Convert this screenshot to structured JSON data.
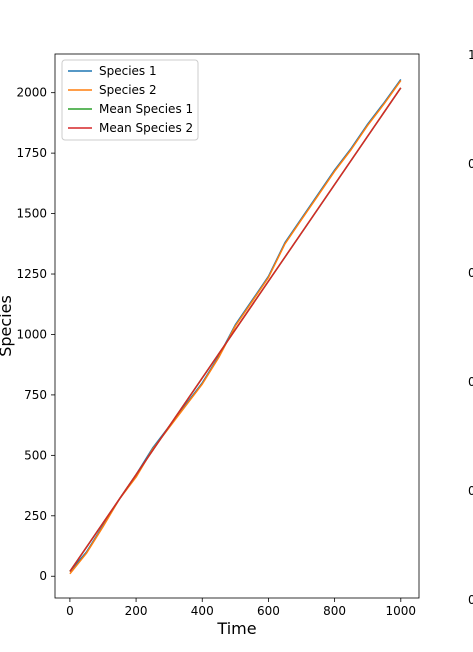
{
  "chart_data": {
    "type": "line",
    "xlabel": "Time",
    "ylabel": "Species",
    "xlim": [
      -45,
      1055
    ],
    "ylim": [
      -90,
      2160
    ],
    "xticks": [
      0,
      200,
      400,
      600,
      800,
      1000
    ],
    "yticks": [
      0,
      250,
      500,
      750,
      1000,
      1250,
      1500,
      1750,
      2000
    ],
    "legend_position": "upper-left",
    "grid": false,
    "series": [
      {
        "name": "Species 1",
        "color": "#1f77b4",
        "x": [
          0,
          50,
          100,
          150,
          200,
          250,
          300,
          350,
          400,
          450,
          500,
          550,
          600,
          650,
          700,
          750,
          800,
          850,
          900,
          950,
          1000
        ],
        "y": [
          20,
          100,
          210,
          320,
          420,
          530,
          620,
          710,
          800,
          910,
          1040,
          1140,
          1240,
          1380,
          1480,
          1580,
          1680,
          1770,
          1870,
          1960,
          2055
        ]
      },
      {
        "name": "Species 2",
        "color": "#ff7f0e",
        "x": [
          0,
          50,
          100,
          150,
          200,
          250,
          300,
          350,
          400,
          450,
          500,
          550,
          600,
          650,
          700,
          750,
          800,
          850,
          900,
          950,
          1000
        ],
        "y": [
          10,
          95,
          205,
          320,
          410,
          525,
          615,
          705,
          795,
          905,
          1035,
          1135,
          1235,
          1375,
          1475,
          1575,
          1675,
          1765,
          1865,
          1955,
          2050
        ]
      },
      {
        "name": "Mean Species 1",
        "color": "#2ca02c",
        "x": [
          0,
          1000
        ],
        "y": [
          20,
          2020
        ]
      },
      {
        "name": "Mean Species 2",
        "color": "#d62728",
        "x": [
          0,
          1000
        ],
        "y": [
          20,
          2020
        ]
      }
    ],
    "right_panel_tick_labels": [
      "1",
      "0",
      "0",
      "0",
      "0",
      "0"
    ]
  }
}
